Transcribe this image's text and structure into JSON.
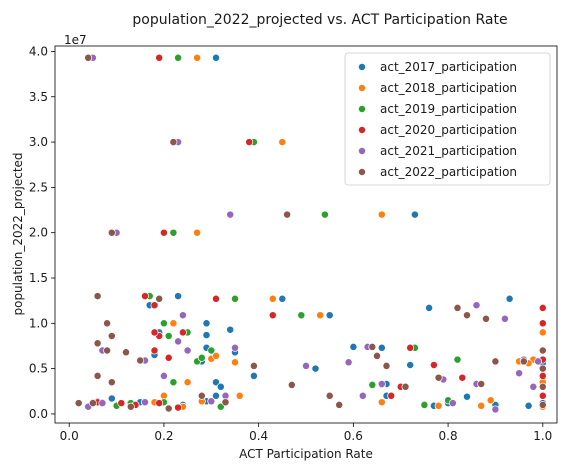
{
  "chart_data": {
    "type": "scatter",
    "title": "population_2022_projected vs. ACT Participation Rate",
    "xlabel": "ACT Participation Rate",
    "ylabel": "population_2022_projected",
    "y_offset_label": "1e7",
    "xlim": [
      -0.03,
      1.03
    ],
    "ylim": [
      -0.1,
      4.06
    ],
    "x_ticks": [
      {
        "value": 0.0,
        "label": "0.0"
      },
      {
        "value": 0.2,
        "label": "0.2"
      },
      {
        "value": 0.4,
        "label": "0.4"
      },
      {
        "value": 0.6,
        "label": "0.6"
      },
      {
        "value": 0.8,
        "label": "0.8"
      },
      {
        "value": 1.0,
        "label": "1.0"
      }
    ],
    "y_ticks": [
      {
        "value": 0.0,
        "label": "0.0"
      },
      {
        "value": 0.5,
        "label": "0.5"
      },
      {
        "value": 1.0,
        "label": "1.0"
      },
      {
        "value": 1.5,
        "label": "1.5"
      },
      {
        "value": 2.0,
        "label": "2.0"
      },
      {
        "value": 2.5,
        "label": "2.5"
      },
      {
        "value": 3.0,
        "label": "3.0"
      },
      {
        "value": 3.5,
        "label": "3.5"
      },
      {
        "value": 4.0,
        "label": "4.0"
      }
    ],
    "grid": false,
    "legend_position": "top-right",
    "series": [
      {
        "name": "act_2017_participation",
        "color": "#1f77b4",
        "points": [
          [
            0.31,
            3.93
          ],
          [
            0.29,
            1.0
          ],
          [
            0.29,
            0.87
          ],
          [
            0.29,
            0.73
          ],
          [
            0.35,
            0.68
          ],
          [
            0.23,
            1.3
          ],
          [
            0.34,
            0.93
          ],
          [
            0.31,
            0.35
          ],
          [
            0.32,
            0.3
          ],
          [
            0.31,
            0.2
          ],
          [
            0.29,
            0.14
          ],
          [
            0.55,
            1.09
          ],
          [
            0.66,
            0.73
          ],
          [
            0.73,
            2.2
          ],
          [
            0.76,
            1.17
          ],
          [
            0.93,
            1.27
          ],
          [
            0.84,
            0.19
          ],
          [
            0.8,
            0.12
          ],
          [
            0.45,
            1.27
          ],
          [
            0.6,
            0.74
          ],
          [
            0.72,
            0.54
          ],
          [
            0.18,
            0.65
          ],
          [
            0.17,
            1.2
          ],
          [
            0.19,
            0.9
          ],
          [
            0.15,
            0.13
          ],
          [
            0.1,
            0.09
          ],
          [
            0.05,
            0.13
          ],
          [
            0.06,
            0.14
          ],
          [
            0.67,
            0.2
          ],
          [
            0.77,
            0.09
          ],
          [
            0.98,
            0.6
          ],
          [
            0.9,
            0.1
          ],
          [
            0.39,
            0.42
          ],
          [
            0.67,
            0.33
          ],
          [
            0.97,
            0.09
          ],
          [
            1.0,
            0.12
          ],
          [
            1.0,
            0.2
          ],
          [
            1.0,
            0.3
          ],
          [
            1.0,
            0.56
          ],
          [
            1.0,
            0.4
          ],
          [
            1.0,
            0.08
          ],
          [
            0.52,
            0.5
          ],
          [
            0.28,
            0.58
          ],
          [
            0.09,
            0.17
          ],
          [
            0.24,
            0.1
          ]
        ]
      },
      {
        "name": "act_2018_participation",
        "color": "#ff7f0e",
        "points": [
          [
            0.27,
            3.93
          ],
          [
            0.45,
            3.0
          ],
          [
            0.27,
            2.0
          ],
          [
            0.66,
            2.2
          ],
          [
            0.43,
            1.27
          ],
          [
            0.53,
            1.09
          ],
          [
            0.22,
            1.0
          ],
          [
            0.3,
            0.61
          ],
          [
            0.31,
            0.64
          ],
          [
            0.25,
            0.35
          ],
          [
            0.18,
            0.13
          ],
          [
            0.66,
            0.32
          ],
          [
            0.71,
            0.3
          ],
          [
            0.78,
            0.09
          ],
          [
            0.87,
            0.09
          ],
          [
            0.95,
            0.58
          ],
          [
            1.0,
            0.9
          ],
          [
            0.98,
            0.6
          ],
          [
            1.0,
            0.35
          ],
          [
            1.0,
            0.08
          ],
          [
            0.66,
            0.13
          ],
          [
            0.2,
            0.2
          ],
          [
            0.24,
            0.08
          ],
          [
            0.36,
            0.2
          ],
          [
            0.89,
            0.15
          ],
          [
            0.97,
            0.56
          ],
          [
            0.07,
            0.12
          ],
          [
            0.05,
            0.13
          ],
          [
            0.28,
            0.14
          ],
          [
            0.35,
            0.57
          ]
        ]
      },
      {
        "name": "act_2019_participation",
        "color": "#2ca02c",
        "points": [
          [
            0.23,
            3.93
          ],
          [
            0.39,
            3.0
          ],
          [
            0.22,
            2.0
          ],
          [
            0.54,
            2.2
          ],
          [
            0.35,
            1.27
          ],
          [
            0.49,
            1.09
          ],
          [
            0.17,
            1.3
          ],
          [
            0.19,
            1.27
          ],
          [
            0.2,
            1.0
          ],
          [
            0.21,
            0.86
          ],
          [
            0.25,
            0.9
          ],
          [
            0.27,
            0.58
          ],
          [
            0.28,
            0.62
          ],
          [
            0.3,
            0.7
          ],
          [
            0.22,
            0.35
          ],
          [
            0.32,
            0.08
          ],
          [
            0.33,
            0.14
          ],
          [
            0.2,
            0.13
          ],
          [
            0.62,
            0.2
          ],
          [
            0.64,
            0.32
          ],
          [
            0.73,
            0.73
          ],
          [
            0.77,
            0.54
          ],
          [
            0.82,
            0.6
          ],
          [
            0.75,
            0.1
          ],
          [
            0.8,
            0.15
          ],
          [
            0.96,
            0.58
          ],
          [
            0.13,
            0.12
          ],
          [
            0.07,
            0.13
          ],
          [
            0.05,
            0.13
          ],
          [
            0.1,
            0.09
          ]
        ]
      },
      {
        "name": "act_2020_participation",
        "color": "#d62728",
        "points": [
          [
            0.19,
            3.93
          ],
          [
            0.38,
            3.0
          ],
          [
            0.2,
            2.0
          ],
          [
            0.31,
            1.27
          ],
          [
            0.43,
            1.09
          ],
          [
            0.16,
            1.3
          ],
          [
            0.18,
            1.2
          ],
          [
            0.19,
            0.86
          ],
          [
            0.18,
            0.7
          ],
          [
            0.21,
            0.62
          ],
          [
            0.24,
            0.9
          ],
          [
            0.16,
            0.13
          ],
          [
            0.18,
            0.9
          ],
          [
            0.55,
            0.2
          ],
          [
            0.68,
            0.2
          ],
          [
            0.72,
            0.73
          ],
          [
            0.7,
            0.3
          ],
          [
            0.77,
            0.54
          ],
          [
            0.83,
            0.4
          ],
          [
            0.96,
            0.58
          ],
          [
            1.0,
            1.17
          ],
          [
            1.0,
            1.0
          ],
          [
            1.0,
            0.6
          ],
          [
            1.0,
            0.42
          ],
          [
            1.0,
            0.2
          ],
          [
            0.11,
            0.12
          ],
          [
            0.06,
            0.13
          ],
          [
            0.14,
            0.1
          ],
          [
            0.19,
            0.12
          ],
          [
            0.23,
            0.07
          ]
        ]
      },
      {
        "name": "act_2021_participation",
        "color": "#9467bd",
        "points": [
          [
            0.05,
            3.93
          ],
          [
            0.23,
            3.0
          ],
          [
            0.1,
            2.0
          ],
          [
            0.34,
            2.2
          ],
          [
            0.24,
            1.09
          ],
          [
            0.19,
            1.27
          ],
          [
            0.2,
            0.42
          ],
          [
            0.23,
            0.8
          ],
          [
            0.25,
            0.7
          ],
          [
            0.35,
            0.73
          ],
          [
            0.16,
            0.59
          ],
          [
            0.07,
            0.7
          ],
          [
            0.5,
            0.53
          ],
          [
            0.59,
            0.57
          ],
          [
            0.63,
            0.74
          ],
          [
            0.62,
            0.2
          ],
          [
            0.66,
            0.33
          ],
          [
            0.79,
            0.38
          ],
          [
            0.81,
            0.12
          ],
          [
            0.86,
            1.2
          ],
          [
            0.86,
            0.33
          ],
          [
            0.92,
            1.05
          ],
          [
            0.96,
            0.6
          ],
          [
            0.98,
            0.3
          ],
          [
            0.99,
            0.58
          ],
          [
            0.9,
            0.05
          ],
          [
            0.04,
            0.08
          ],
          [
            0.07,
            0.12
          ],
          [
            0.16,
            0.13
          ],
          [
            0.3,
            0.14
          ],
          [
            0.33,
            0.2
          ],
          [
            0.95,
            0.45
          ]
        ]
      },
      {
        "name": "act_2022_participation",
        "color": "#8c564b",
        "points": [
          [
            0.04,
            3.93
          ],
          [
            0.22,
            3.0
          ],
          [
            0.09,
            2.0
          ],
          [
            0.46,
            2.2
          ],
          [
            0.06,
            1.3
          ],
          [
            0.19,
            1.27
          ],
          [
            0.08,
            1.0
          ],
          [
            0.09,
            0.86
          ],
          [
            0.06,
            0.78
          ],
          [
            0.08,
            0.7
          ],
          [
            0.12,
            0.68
          ],
          [
            0.15,
            0.59
          ],
          [
            0.06,
            0.42
          ],
          [
            0.09,
            0.35
          ],
          [
            0.39,
            0.53
          ],
          [
            0.47,
            0.32
          ],
          [
            0.55,
            0.2
          ],
          [
            0.57,
            0.1
          ],
          [
            0.64,
            0.74
          ],
          [
            0.65,
            0.64
          ],
          [
            0.67,
            0.53
          ],
          [
            0.71,
            0.3
          ],
          [
            0.78,
            0.4
          ],
          [
            0.82,
            1.17
          ],
          [
            0.84,
            1.09
          ],
          [
            0.88,
            1.05
          ],
          [
            0.87,
            0.33
          ],
          [
            0.9,
            0.58
          ],
          [
            1.0,
            0.7
          ],
          [
            1.0,
            0.5
          ],
          [
            1.0,
            0.3
          ],
          [
            1.0,
            0.1
          ],
          [
            0.02,
            0.12
          ],
          [
            0.05,
            0.12
          ],
          [
            0.13,
            0.08
          ],
          [
            0.21,
            0.06
          ],
          [
            0.28,
            0.2
          ],
          [
            0.33,
            0.13
          ],
          [
            0.96,
            0.58
          ]
        ]
      }
    ]
  }
}
